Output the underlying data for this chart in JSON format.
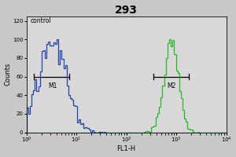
{
  "title": "293",
  "title_fontsize": 10,
  "title_fontweight": "bold",
  "xlabel": "FL1-H",
  "ylabel": "Counts",
  "xlim_log": [
    0,
    4
  ],
  "ylim": [
    0,
    125
  ],
  "yticks": [
    0,
    20,
    40,
    60,
    80,
    100,
    120
  ],
  "control_label": "control",
  "control_color": "#2244aa",
  "sample_color": "#22bb22",
  "m1_label": "M1",
  "m2_label": "M2",
  "m1_x_center_log": 0.52,
  "m1_x_left_log": 0.15,
  "m1_x_right_log": 0.85,
  "m2_x_center_log": 2.9,
  "m2_x_left_log": 2.55,
  "m2_x_right_log": 3.25,
  "m1_y_bracket": 60,
  "m2_y_bracket": 60,
  "fig_facecolor": "#c8c8c8",
  "plot_bg_color": "#d8d8d8",
  "control_peak_log": 0.52,
  "control_sigma_log": 0.28,
  "control_peak_height": 100,
  "sample_peak_log": 2.9,
  "sample_sigma_log": 0.15,
  "sample_peak_height": 100,
  "n_bins": 120
}
